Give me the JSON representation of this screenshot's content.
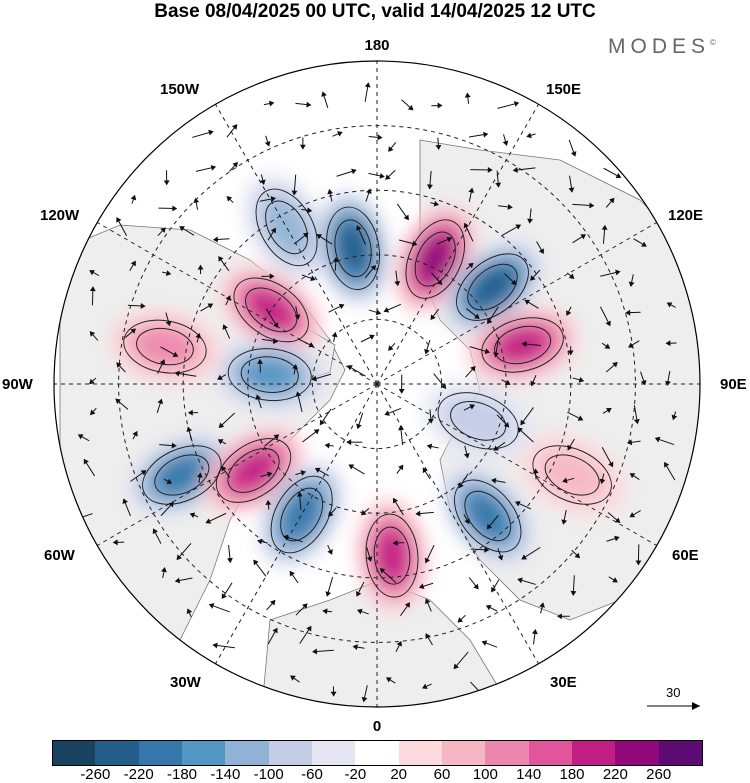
{
  "title": "Base 08/04/2025 00 UTC, valid 14/04/2025 12 UTC",
  "brand": "MODES",
  "brand_mark": "©",
  "longitude_labels": {
    "top": "180",
    "bottom": "0",
    "left": "90W",
    "right": "90E",
    "upper_left_1": "150W",
    "upper_left_2": "120W",
    "lower_left_1": "60W",
    "lower_left_2": "30W",
    "upper_right_1": "150E",
    "upper_right_2": "120E",
    "lower_right_1": "60E",
    "lower_right_2": "30E"
  },
  "vector_reference": {
    "label": "30"
  },
  "colorbar": {
    "labels": [
      "-260",
      "-220",
      "-180",
      "-140",
      "-100",
      "-60",
      "-20",
      "20",
      "60",
      "100",
      "140",
      "180",
      "220",
      "260"
    ],
    "colors": [
      "#18425f",
      "#245f8c",
      "#3677ab",
      "#5296c4",
      "#91b3d6",
      "#c3cde6",
      "#e5e6f2",
      "#ffffff",
      "#fcdadd",
      "#f5b7c4",
      "#ec88ae",
      "#e0559b",
      "#c11e85",
      "#90087a",
      "#5e0a74"
    ]
  },
  "anomaly_centers": [
    {
      "lon_lat": "150W 48N",
      "sign": "negative",
      "level": -100
    },
    {
      "lon_lat": "170W 58N",
      "sign": "negative",
      "level": -220
    },
    {
      "lon_lat": "155E 58N",
      "sign": "positive",
      "level": 220
    },
    {
      "lon_lat": "130E 55N",
      "sign": "negative",
      "level": -220
    },
    {
      "lon_lat": "105E 55N",
      "sign": "positive",
      "level": 180
    },
    {
      "lon_lat": "125W 60N",
      "sign": "positive",
      "level": 180
    },
    {
      "lon_lat": "95W 65N",
      "sign": "negative",
      "level": -140
    },
    {
      "lon_lat": "100W 40N",
      "sign": "positive",
      "level": 100
    },
    {
      "lon_lat": "65W 40N",
      "sign": "negative",
      "level": -180
    },
    {
      "lon_lat": "55W 55N",
      "sign": "positive",
      "level": 180
    },
    {
      "lon_lat": "30W 55N",
      "sign": "negative",
      "level": -180
    },
    {
      "lon_lat": "5E 50N",
      "sign": "positive",
      "level": 180
    },
    {
      "lon_lat": "40E 50N",
      "sign": "negative",
      "level": -180
    },
    {
      "lon_lat": "65E 40N",
      "sign": "positive",
      "level": 60
    },
    {
      "lon_lat": "70E 65N",
      "sign": "negative",
      "level": -60
    }
  ]
}
